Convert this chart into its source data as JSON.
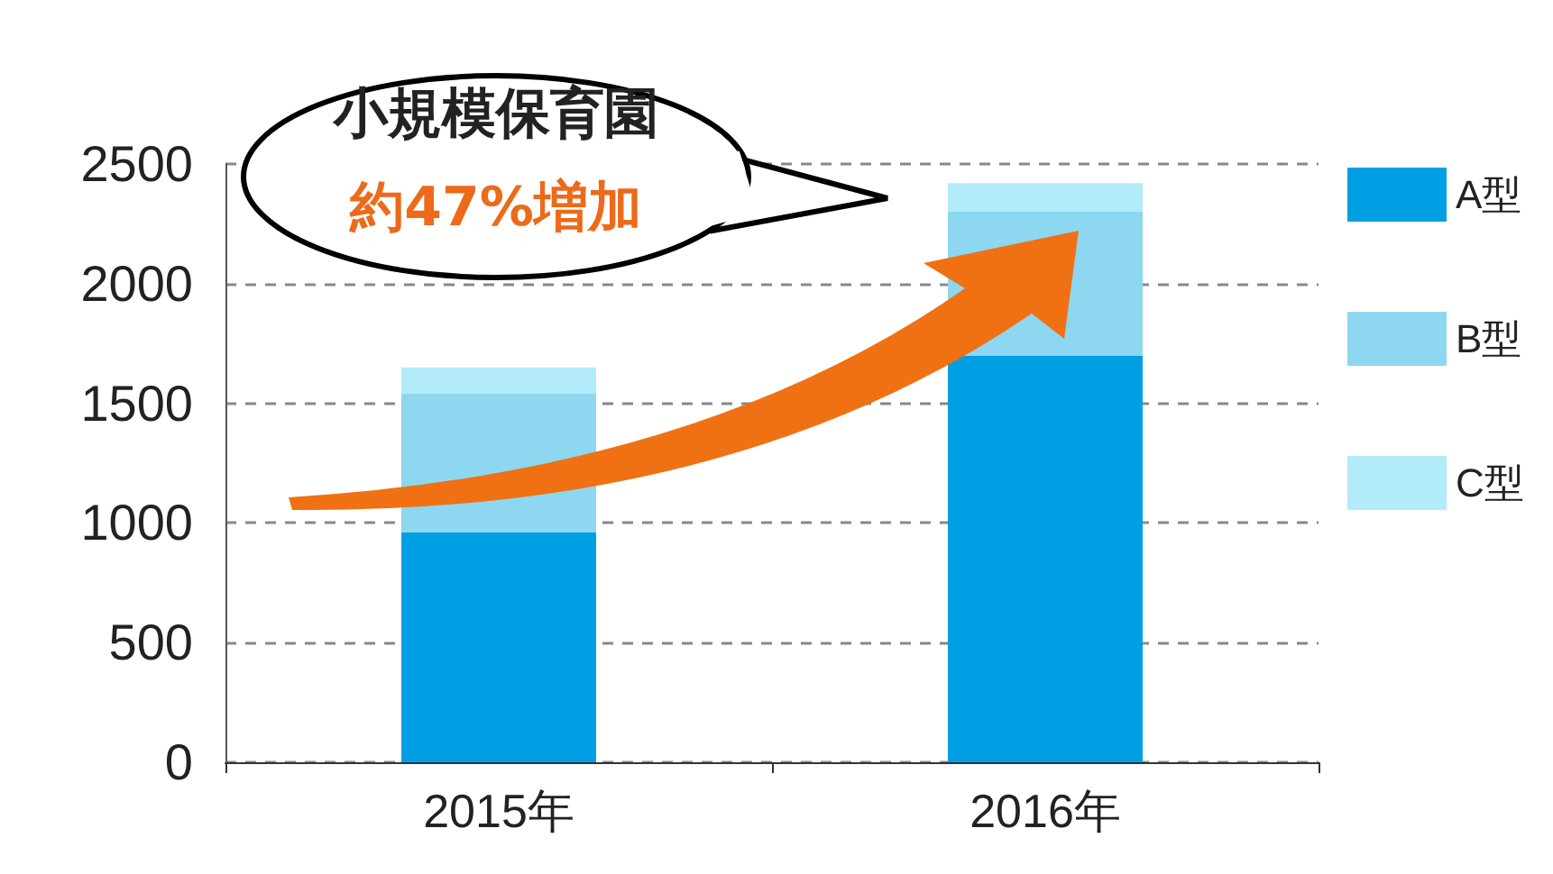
{
  "chart_data": {
    "type": "bar",
    "stacked": true,
    "categories": [
      "2015年",
      "2016年"
    ],
    "series": [
      {
        "name": "A型",
        "color": "#009fe3",
        "values": [
          960,
          1700
        ]
      },
      {
        "name": "B型",
        "color": "#8dd7f0",
        "values": [
          580,
          600
        ]
      },
      {
        "name": "C型",
        "color": "#b2ecfb",
        "values": [
          110,
          120
        ]
      }
    ],
    "ylim": [
      0,
      2500
    ],
    "yticks": [
      0,
      500,
      1000,
      1500,
      2000,
      2500
    ],
    "grid": "y",
    "legend": "right",
    "annotations": [
      "小規模保育園",
      "約47%増加"
    ]
  }
}
